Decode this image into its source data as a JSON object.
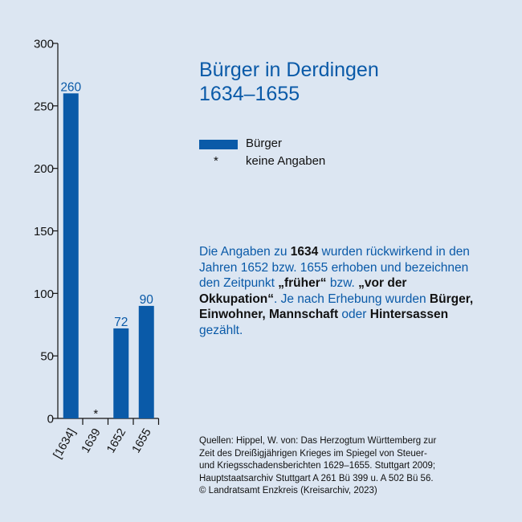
{
  "chart_data": {
    "type": "bar",
    "title": "Bürger in Derdingen",
    "subtitle": "1634–1655",
    "categories": [
      "[1634]",
      "1639",
      "1652",
      "1655"
    ],
    "values": [
      260,
      null,
      72,
      90
    ],
    "value_labels": [
      "260",
      "*",
      "72",
      "90"
    ],
    "ylim": [
      0,
      300
    ],
    "yticks": [
      0,
      50,
      100,
      150,
      200,
      250,
      300
    ],
    "grid": false,
    "bar_color": "#0a5aa8",
    "legend": [
      {
        "symbol": "bar",
        "label": "Bürger"
      },
      {
        "symbol": "*",
        "label": "keine Angaben"
      }
    ]
  },
  "note": {
    "t1": "Die Angaben zu ",
    "b1": "1634",
    "t2": " wurden rückwirkend in den Jahren 1652 bzw. 1655 erhoben und bezeichnen den Zeitpunkt ",
    "b2": "„früher“",
    "t3": " bzw. ",
    "b3": "„vor der Okkupation“",
    "t4": ". Je nach Erhebung wurden ",
    "b4": "Bürger, Einwohner, Mannschaft",
    "t5": " oder ",
    "b5": "Hintersassen",
    "t6": " gezählt."
  },
  "source": {
    "line1": "Quellen: Hippel, W. von: Das Herzogtum Württemberg zur",
    "line2": "Zeit des Dreißigjährigen Krieges im Spiegel von Steuer-",
    "line3": "und Kriegsschadensberichten 1629–1655. Stuttgart 2009;",
    "line4": "Hauptstaatsarchiv Stuttgart A 261 Bü 399 u. A 502 Bü 56.",
    "line5": "© Landratsamt Enzkreis (Kreisarchiv, 2023)"
  },
  "colors": {
    "background": "#dce6f2",
    "accent": "#0a5aa8",
    "text": "#111111"
  }
}
